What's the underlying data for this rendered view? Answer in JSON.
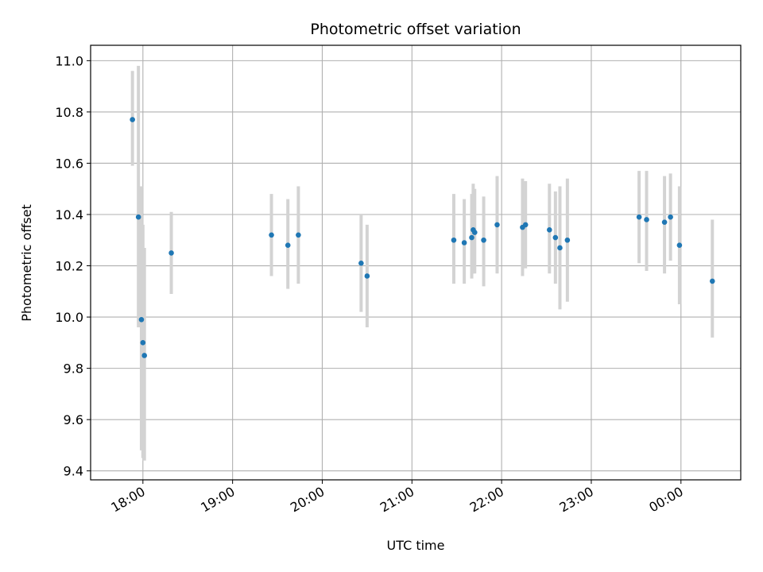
{
  "chart_data": {
    "type": "scatter",
    "title": "Photometric offset variation",
    "xlabel": "UTC time",
    "ylabel": "Photometric offset",
    "x_format": "HH:MM",
    "xlim": [
      "17:25",
      "00:40"
    ],
    "ylim": [
      9.365,
      11.06
    ],
    "x_ticks": [
      "18:00",
      "19:00",
      "20:00",
      "21:00",
      "22:00",
      "23:00",
      "00:00"
    ],
    "y_ticks": [
      9.4,
      9.6,
      9.8,
      10.0,
      10.2,
      10.4,
      10.6,
      10.8,
      11.0
    ],
    "grid": true,
    "colors": {
      "marker": "#1f77b4",
      "errorbar": "#d3d3d3",
      "grid": "#b0b0b0"
    },
    "points": [
      {
        "t": "17:53",
        "y": 10.77,
        "lo": 10.59,
        "hi": 10.96
      },
      {
        "t": "17:57",
        "y": 10.39,
        "lo": 9.96,
        "hi": 10.98
      },
      {
        "t": "17:59",
        "y": 9.99,
        "lo": 9.48,
        "hi": 10.51
      },
      {
        "t": "18:00",
        "y": 9.9,
        "lo": 9.45,
        "hi": 10.36
      },
      {
        "t": "18:01",
        "y": 9.85,
        "lo": 9.44,
        "hi": 10.27
      },
      {
        "t": "18:19",
        "y": 10.25,
        "lo": 10.09,
        "hi": 10.41
      },
      {
        "t": "19:26",
        "y": 10.32,
        "lo": 10.16,
        "hi": 10.48
      },
      {
        "t": "19:37",
        "y": 10.28,
        "lo": 10.11,
        "hi": 10.46
      },
      {
        "t": "19:44",
        "y": 10.32,
        "lo": 10.13,
        "hi": 10.51
      },
      {
        "t": "20:26",
        "y": 10.21,
        "lo": 10.02,
        "hi": 10.4
      },
      {
        "t": "20:30",
        "y": 10.16,
        "lo": 9.96,
        "hi": 10.36
      },
      {
        "t": "21:28",
        "y": 10.3,
        "lo": 10.13,
        "hi": 10.48
      },
      {
        "t": "21:35",
        "y": 10.29,
        "lo": 10.13,
        "hi": 10.46
      },
      {
        "t": "21:40",
        "y": 10.31,
        "lo": 10.15,
        "hi": 10.48
      },
      {
        "t": "21:41",
        "y": 10.34,
        "lo": 10.17,
        "hi": 10.52
      },
      {
        "t": "21:42",
        "y": 10.33,
        "lo": 10.17,
        "hi": 10.5
      },
      {
        "t": "21:48",
        "y": 10.3,
        "lo": 10.12,
        "hi": 10.47
      },
      {
        "t": "21:57",
        "y": 10.36,
        "lo": 10.17,
        "hi": 10.55
      },
      {
        "t": "22:14",
        "y": 10.35,
        "lo": 10.16,
        "hi": 10.54
      },
      {
        "t": "22:16",
        "y": 10.36,
        "lo": 10.19,
        "hi": 10.53
      },
      {
        "t": "22:32",
        "y": 10.34,
        "lo": 10.17,
        "hi": 10.52
      },
      {
        "t": "22:36",
        "y": 10.31,
        "lo": 10.13,
        "hi": 10.49
      },
      {
        "t": "22:39",
        "y": 10.27,
        "lo": 10.03,
        "hi": 10.51
      },
      {
        "t": "22:44",
        "y": 10.3,
        "lo": 10.06,
        "hi": 10.54
      },
      {
        "t": "23:32",
        "y": 10.39,
        "lo": 10.21,
        "hi": 10.57
      },
      {
        "t": "23:37",
        "y": 10.38,
        "lo": 10.18,
        "hi": 10.57
      },
      {
        "t": "23:49",
        "y": 10.37,
        "lo": 10.17,
        "hi": 10.55
      },
      {
        "t": "23:53",
        "y": 10.39,
        "lo": 10.22,
        "hi": 10.56
      },
      {
        "t": "23:59",
        "y": 10.28,
        "lo": 10.05,
        "hi": 10.51
      },
      {
        "t": "00:21",
        "y": 10.14,
        "lo": 9.92,
        "hi": 10.38
      }
    ]
  }
}
